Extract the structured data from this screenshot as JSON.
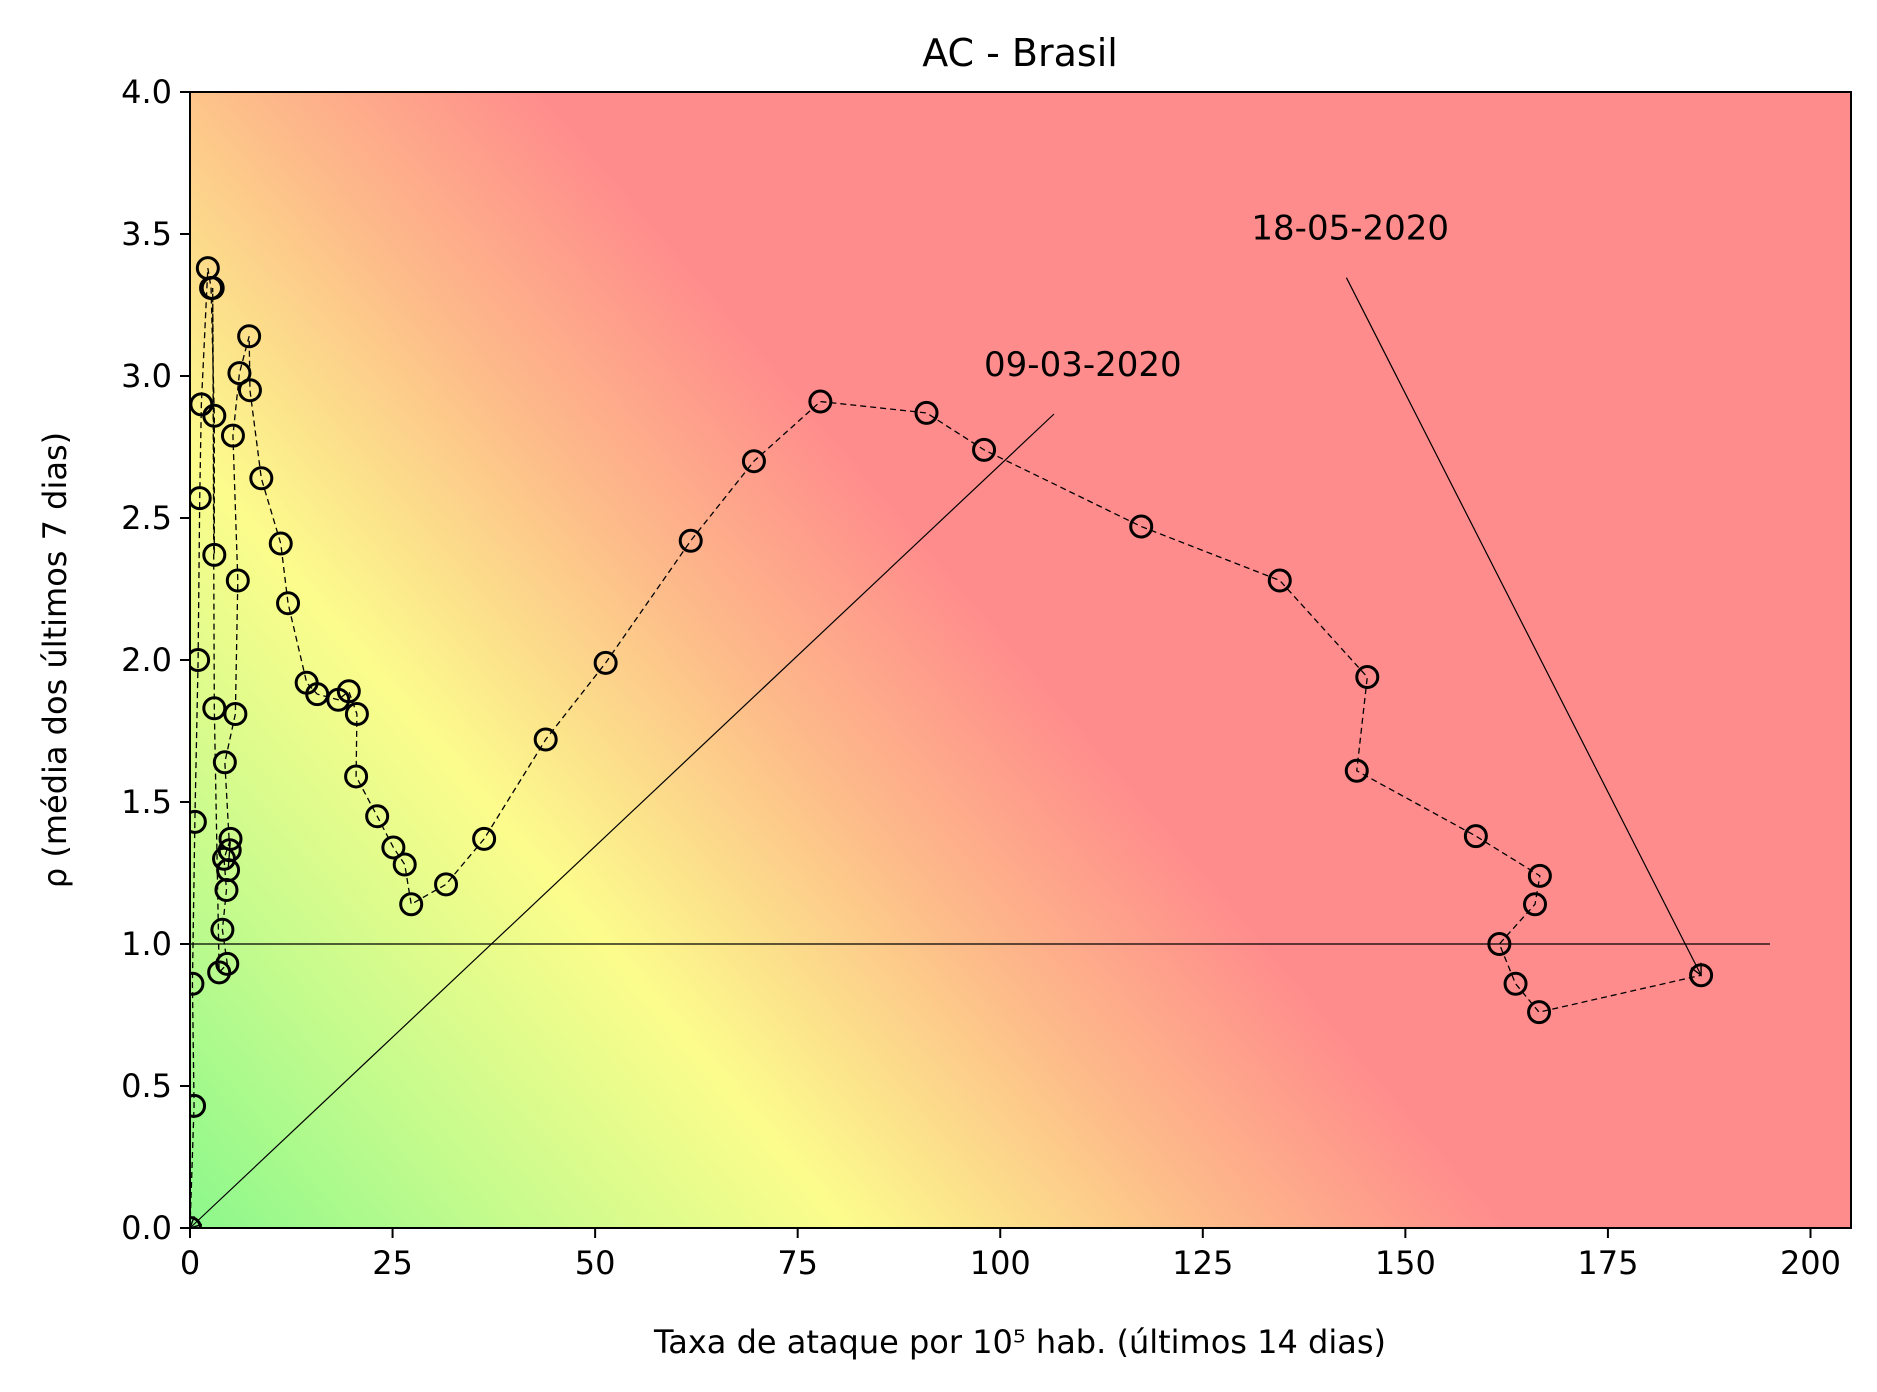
{
  "chart_data": {
    "type": "scatter",
    "title": "AC - Brasil",
    "xlabel": "Taxa de ataque por 10⁵ hab. (últimos 14 dias)",
    "ylabel": "ρ (média dos últimos 7 dias)",
    "xlim": [
      0,
      205
    ],
    "ylim": [
      0,
      4
    ],
    "xticks": [
      0,
      25,
      50,
      75,
      100,
      125,
      150,
      175,
      200
    ],
    "yticks": [
      0.0,
      0.5,
      1.0,
      1.5,
      2.0,
      2.5,
      3.0,
      3.5,
      4.0
    ],
    "xtick_labels": [
      "0",
      "25",
      "50",
      "75",
      "100",
      "125",
      "150",
      "175",
      "200"
    ],
    "ytick_labels": [
      "0.0",
      "0.5",
      "1.0",
      "1.5",
      "2.0",
      "2.5",
      "3.0",
      "3.5",
      "4.0"
    ],
    "grid": false,
    "background": "risk gradient: green near origin, yellow band, red for high rate",
    "reference_line": {
      "y": 1.0,
      "x_range": [
        0,
        195
      ]
    },
    "annotations": [
      {
        "text": "09-03-2020",
        "text_at": [
          98,
          3.0
        ],
        "arrow_to": [
          0,
          0
        ]
      },
      {
        "text": "18-05-2020",
        "text_at": [
          131,
          3.48
        ],
        "arrow_to": [
          186.5,
          0.89
        ]
      }
    ],
    "series": [
      {
        "marker": "circle-open",
        "line": "dashed",
        "points": [
          [
            0,
            0
          ],
          [
            0.5,
            0.43
          ],
          [
            0.3,
            0.86
          ],
          [
            0.6,
            1.43
          ],
          [
            1.0,
            2.0
          ],
          [
            1.2,
            2.57
          ],
          [
            1.4,
            2.9
          ],
          [
            2.2,
            3.38
          ],
          [
            2.6,
            3.31
          ],
          [
            3.0,
            2.86
          ],
          [
            3.0,
            2.37
          ],
          [
            2.8,
            3.31
          ],
          [
            3.0,
            1.83
          ],
          [
            3.6,
            0.9
          ],
          [
            4.6,
            0.93
          ],
          [
            4.0,
            1.05
          ],
          [
            4.5,
            1.19
          ],
          [
            4.2,
            1.3
          ],
          [
            5.0,
            1.37
          ],
          [
            4.7,
            1.26
          ],
          [
            4.9,
            1.33
          ],
          [
            4.3,
            1.64
          ],
          [
            5.6,
            1.81
          ],
          [
            5.9,
            2.28
          ],
          [
            5.3,
            2.79
          ],
          [
            6.1,
            3.01
          ],
          [
            7.3,
            3.14
          ],
          [
            7.4,
            2.95
          ],
          [
            8.8,
            2.64
          ],
          [
            11.2,
            2.41
          ],
          [
            12.1,
            2.2
          ],
          [
            14.4,
            1.92
          ],
          [
            15.7,
            1.88
          ],
          [
            18.3,
            1.86
          ],
          [
            19.6,
            1.89
          ],
          [
            20.6,
            1.81
          ],
          [
            20.5,
            1.59
          ],
          [
            23.1,
            1.45
          ],
          [
            25.1,
            1.34
          ],
          [
            26.5,
            1.28
          ],
          [
            27.3,
            1.14
          ],
          [
            31.6,
            1.21
          ],
          [
            36.3,
            1.37
          ],
          [
            43.9,
            1.72
          ],
          [
            51.3,
            1.99
          ],
          [
            61.8,
            2.42
          ],
          [
            69.6,
            2.7
          ],
          [
            77.8,
            2.91
          ],
          [
            90.9,
            2.87
          ],
          [
            98.0,
            2.74
          ],
          [
            117.4,
            2.47
          ],
          [
            134.5,
            2.28
          ],
          [
            145.3,
            1.94
          ],
          [
            144.0,
            1.61
          ],
          [
            158.7,
            1.38
          ],
          [
            166.6,
            1.24
          ],
          [
            166.0,
            1.14
          ],
          [
            161.6,
            1.0
          ],
          [
            163.6,
            0.86
          ],
          [
            166.5,
            0.76
          ],
          [
            186.5,
            0.89
          ]
        ]
      }
    ]
  }
}
